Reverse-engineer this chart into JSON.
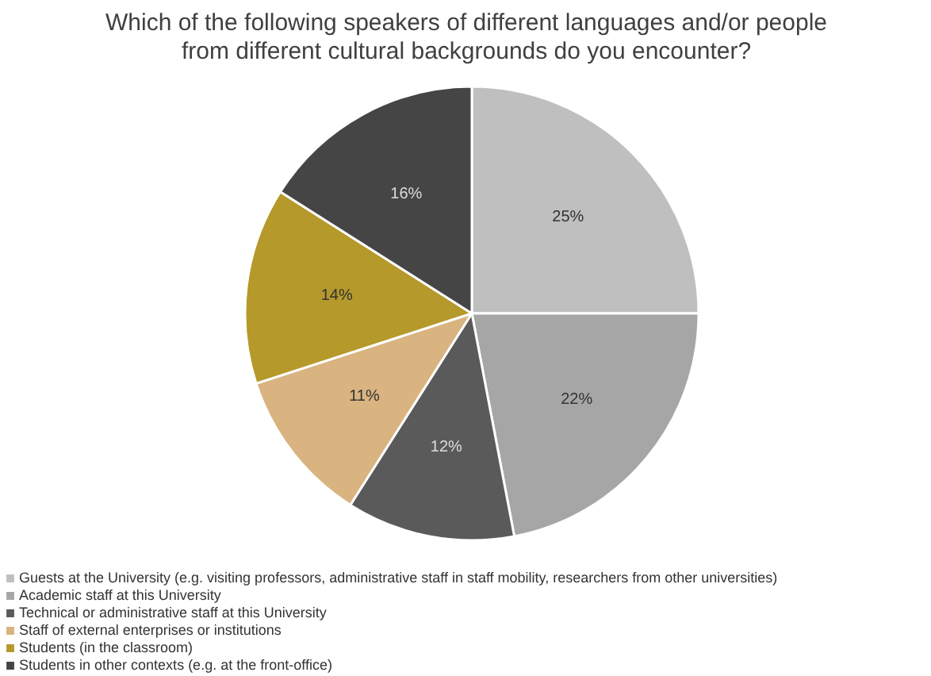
{
  "chart_data": {
    "type": "pie",
    "title": "Which of the following speakers of different languages and/or people from different cultural backgrounds do you encounter?",
    "categories": [
      "Guests at the University (e.g. visiting professors, administrative staff in staff mobility, researchers from other universities)",
      "Academic staff at this University",
      "Technical or administrative staff at this University",
      "Staff of external enterprises or institutions",
      "Students (in the classroom)",
      "Students in other contexts (e.g. at the front-office)"
    ],
    "values": [
      25,
      22,
      12,
      11,
      14,
      16
    ],
    "colors": [
      "#bfbfbf",
      "#a6a6a6",
      "#5a5a5a",
      "#d9b380",
      "#b5992a",
      "#454545"
    ],
    "value_labels": [
      "25%",
      "22%",
      "12%",
      "11%",
      "14%",
      "16%"
    ],
    "legend": "bottom left"
  }
}
